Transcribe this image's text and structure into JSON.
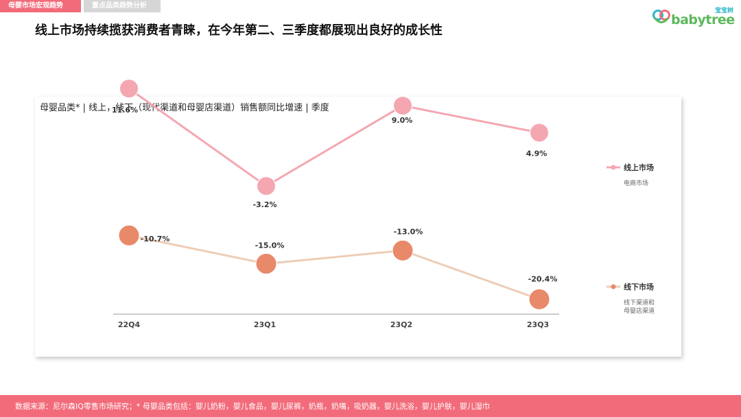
{
  "header": {
    "tabs": [
      {
        "label": "母婴市场宏观趋势",
        "active": true
      },
      {
        "label": "重点品类趋势分析",
        "active": false
      }
    ],
    "title": "线上市场持续揽获消费者青睐，在今年第二、三季度都展现出良好的成长性"
  },
  "logo": {
    "badge": "宝宝树",
    "wordmark": "babytree",
    "icon": "babytree-heart-logo-icon"
  },
  "colors": {
    "tab_active": "#f26b7a",
    "tab_inactive": "#d6d6d6",
    "online": "#f4a7b1",
    "offline_line": "#edcdb6",
    "offline_marker": "#e8896a",
    "footer": "#f26b7a",
    "logo_badge": "#29b6c9",
    "logo_word": "#5cb85c"
  },
  "chart_data": {
    "type": "line",
    "title": "母婴品类* | 线上，线下（现代渠道和母婴店渠道）销售额同比增速 | 季度",
    "categories": [
      "22Q4",
      "23Q1",
      "23Q2",
      "23Q3"
    ],
    "series": [
      {
        "name": "线上市场",
        "subname": "电商市场",
        "values": [
          11.6,
          -3.2,
          9.0,
          4.9
        ],
        "labels": [
          "11.6%",
          "-3.2%",
          "9.0%",
          "4.9%"
        ]
      },
      {
        "name": "线下市场",
        "subname": [
          "线下渠道和",
          "母婴店渠道"
        ],
        "values": [
          -10.7,
          -15.0,
          -13.0,
          -20.4
        ],
        "labels": [
          "-10.7%",
          "-15.0%",
          "-13.0%",
          "-20.4%"
        ]
      }
    ],
    "unit": "%",
    "grid": false,
    "legend": "right"
  },
  "footer": {
    "text": "数据来源：尼尔森IQ零售市场研究；* 母婴品类包括：婴儿奶粉，婴儿食品，婴儿尿裤，奶瓶，奶嘴，吸奶器，婴儿洗浴，婴儿护肤，婴儿湿巾"
  }
}
